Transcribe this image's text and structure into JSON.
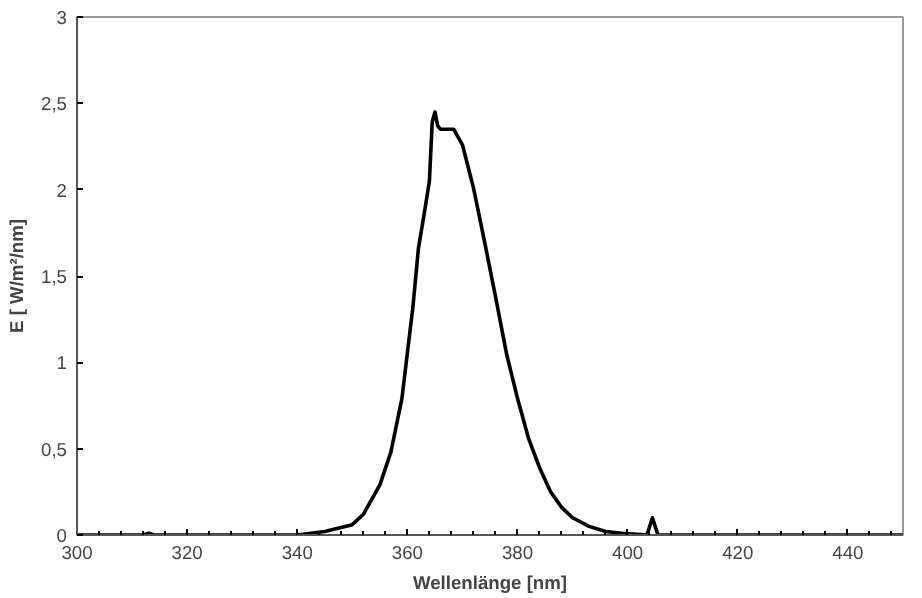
{
  "chart_data": {
    "type": "line",
    "xlabel": "Wellenlänge [nm]",
    "ylabel": "E [ W/m²/nm]",
    "xlim": [
      300,
      450
    ],
    "xticks": [
      300,
      320,
      340,
      360,
      380,
      400,
      420,
      440
    ],
    "ylim": [
      0,
      3
    ],
    "yticks": [
      0,
      {
        "value": 0.5,
        "label": "0,5"
      },
      1,
      {
        "value": 1.5,
        "label": "1,5"
      },
      2,
      {
        "value": 2.5,
        "label": "2,5"
      },
      3
    ],
    "grid": false,
    "marker": "none",
    "line_style": "solid",
    "series": [
      {
        "color": "#000000",
        "x": [
          300,
          312,
          313,
          314,
          340,
          345,
          350,
          352,
          355,
          357,
          359,
          361,
          362,
          363,
          364,
          364.5,
          365,
          365.5,
          366,
          368.4,
          370,
          372,
          374,
          376,
          378,
          380,
          382,
          384,
          386,
          388,
          390,
          393,
          396,
          399,
          403.5,
          404.5,
          405.5,
          450
        ],
        "values": [
          0,
          0,
          0.01,
          0,
          0,
          0.02,
          0.06,
          0.12,
          0.29,
          0.48,
          0.79,
          1.32,
          1.66,
          1.85,
          2.05,
          2.39,
          2.45,
          2.37,
          2.35,
          2.35,
          2.26,
          2.01,
          1.7,
          1.38,
          1.05,
          0.79,
          0.56,
          0.39,
          0.25,
          0.16,
          0.1,
          0.05,
          0.02,
          0.01,
          0,
          0.1,
          0,
          0
        ]
      }
    ]
  }
}
